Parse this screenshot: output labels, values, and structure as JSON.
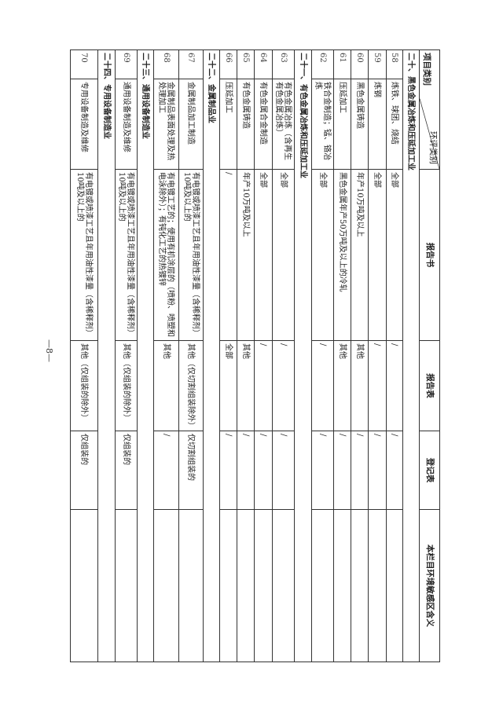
{
  "header": {
    "env_category": "环评类别",
    "project_category": "项目类别",
    "report_book": "报告书",
    "report_form": "报告表",
    "registration_form": "登记表",
    "sensitive_area": "本栏目环境敏感区含义"
  },
  "rows": [
    {
      "section": "二十、黑色金属冶炼和压延加工业"
    },
    {
      "no": "58",
      "name": "炼铁、球团、烧结",
      "book": "全部",
      "form": "/",
      "reg": "/",
      "area": ""
    },
    {
      "no": "59",
      "name": "炼钢",
      "book": "全部",
      "form": "/",
      "reg": "/",
      "area": ""
    },
    {
      "no": "60",
      "name": "黑色金属铸造",
      "book": "年产10万吨及以上",
      "form": "其他",
      "reg": "/",
      "area": ""
    },
    {
      "no": "61",
      "name": "压延加工",
      "book": "黑色金属年产50万吨及以上的冷轧",
      "form": "其他",
      "reg": "/",
      "area": ""
    },
    {
      "no": "62",
      "name": "铁合金制造；锰、铬冶炼",
      "book": "全部",
      "form": "/",
      "reg": "/",
      "area": ""
    },
    {
      "section": "二十一、有色金属冶炼和压延加工业"
    },
    {
      "no": "63",
      "name": "有色金属冶炼（含再生有色金属冶炼）",
      "book": "全部",
      "form": "/",
      "reg": "/",
      "area": ""
    },
    {
      "no": "64",
      "name": "有色金属合金制造",
      "book": "全部",
      "form": "/",
      "reg": "/",
      "area": ""
    },
    {
      "no": "65",
      "name": "有色金属铸造",
      "book": "年产10万吨及以上",
      "form": "其他",
      "reg": "/",
      "area": ""
    },
    {
      "no": "66",
      "name": "压延加工",
      "book": "/",
      "form": "全部",
      "reg": "/",
      "area": ""
    },
    {
      "section": "二十二、金属制品业"
    },
    {
      "no": "67",
      "name": "金属制品加工制造",
      "book": "有电镀或喷漆工艺且年用油性漆量（含稀释剂）10吨及以上的",
      "form": "其他（仅切割组装除外）",
      "reg": "仅切割组装的",
      "area": ""
    },
    {
      "no": "68",
      "name": "金属制品表面处理及热处理加工",
      "book": "有电镀工艺的；使用有机涂层的（喷粉、喷塑和电泳除外）；有钝化工艺的热镀锌",
      "form": "其他",
      "reg": "/",
      "area": ""
    },
    {
      "section": "二十三、通用设备制造业"
    },
    {
      "no": "69",
      "name": "通用设备制造及维修",
      "book": "有电镀或喷漆工艺且年用油性漆量（含稀释剂）10吨及以上的",
      "form": "其他（仅组装的除外）",
      "reg": "仅组装的",
      "area": ""
    },
    {
      "section": "二十四、专用设备制造业"
    },
    {
      "no": "70",
      "name": "专用设备制造及维修",
      "book": "有电镀或喷漆工艺且年用油性漆量（含稀释剂）10吨及以上的",
      "form": "其他（仅组装的除外）",
      "reg": "仅组装的",
      "area": ""
    }
  ],
  "page_number": "—8—"
}
